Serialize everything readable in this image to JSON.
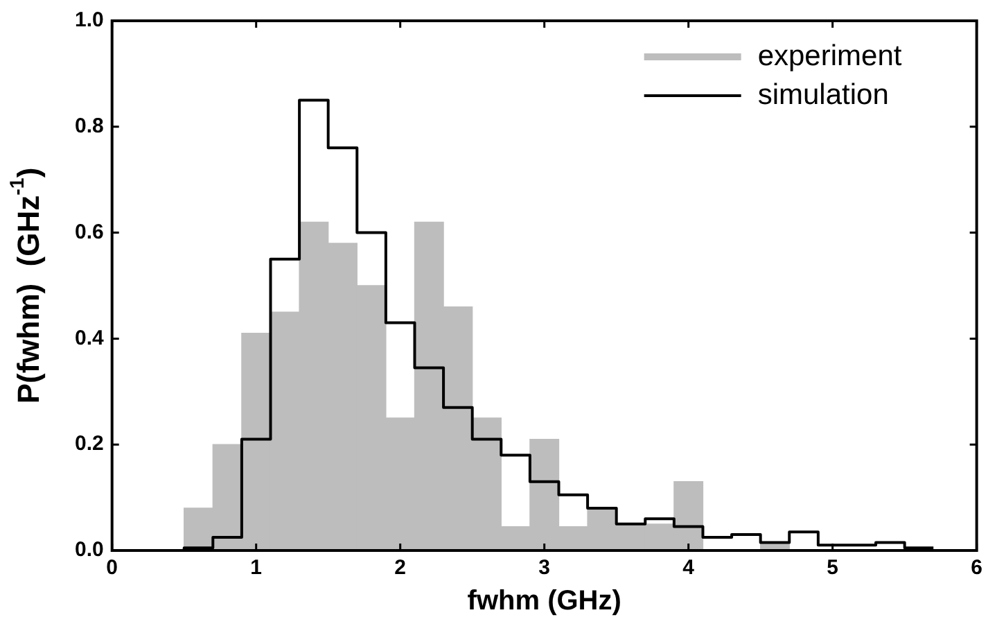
{
  "chart_data": {
    "type": "histogram",
    "xlabel": "fwhm (GHz)",
    "ylabel": "P(fwhm)  (GHz$^{-1}$)",
    "bins": [
      0.1,
      0.3,
      0.5,
      0.7,
      0.9,
      1.1,
      1.3,
      1.5,
      1.7,
      1.9,
      2.1,
      2.3,
      2.5,
      2.7,
      2.9,
      3.1,
      3.3,
      3.5,
      3.7,
      3.9,
      4.1,
      4.3,
      4.5,
      4.7,
      4.9,
      5.1,
      5.3,
      5.5,
      5.7,
      5.9
    ],
    "series": [
      {
        "name": "experiment",
        "color": "#bdbdbd",
        "values": [
          0,
          0,
          0.08,
          0.2,
          0.41,
          0.45,
          0.62,
          0.58,
          0.5,
          0.25,
          0.62,
          0.46,
          0.25,
          0.045,
          0.21,
          0.045,
          0.08,
          0.05,
          0.05,
          0.13,
          0,
          0,
          0.015,
          0,
          0,
          0,
          0,
          0,
          0
        ]
      },
      {
        "name": "simulation",
        "type": "step",
        "color": "#000000",
        "x": [
          0.1,
          0.3,
          0.5,
          0.7,
          0.9,
          1.1,
          1.3,
          1.5,
          1.7,
          1.9,
          2.1,
          2.3,
          2.5,
          2.7,
          2.9,
          3.1,
          3.3,
          3.5,
          3.7,
          3.9,
          4.1,
          4.3,
          4.5,
          4.7,
          4.9,
          5.1,
          5.3,
          5.5,
          5.7
        ],
        "values": [
          0,
          0,
          0.005,
          0.025,
          0.21,
          0.55,
          0.85,
          0.76,
          0.6,
          0.43,
          0.345,
          0.27,
          0.21,
          0.18,
          0.13,
          0.105,
          0.08,
          0.05,
          0.06,
          0.045,
          0.025,
          0.03,
          0.015,
          0.035,
          0.01,
          0.01,
          0.015,
          0.005,
          0.005
        ]
      }
    ],
    "xlim": [
      0,
      6
    ],
    "xticks": [
      0,
      1,
      2,
      3,
      4,
      5,
      6
    ],
    "ylim": [
      0,
      1.0
    ],
    "yticks": [
      {
        "value": 0,
        "label": "0.0"
      },
      {
        "value": 0.2,
        "label": "0.2"
      },
      {
        "value": 0.4,
        "label": "0.4"
      },
      {
        "value": 0.6,
        "label": "0.6"
      },
      {
        "value": 0.8,
        "label": "0.8"
      },
      {
        "value": 1.0,
        "label": "1.0"
      }
    ],
    "grid": false,
    "legend": "top right"
  }
}
